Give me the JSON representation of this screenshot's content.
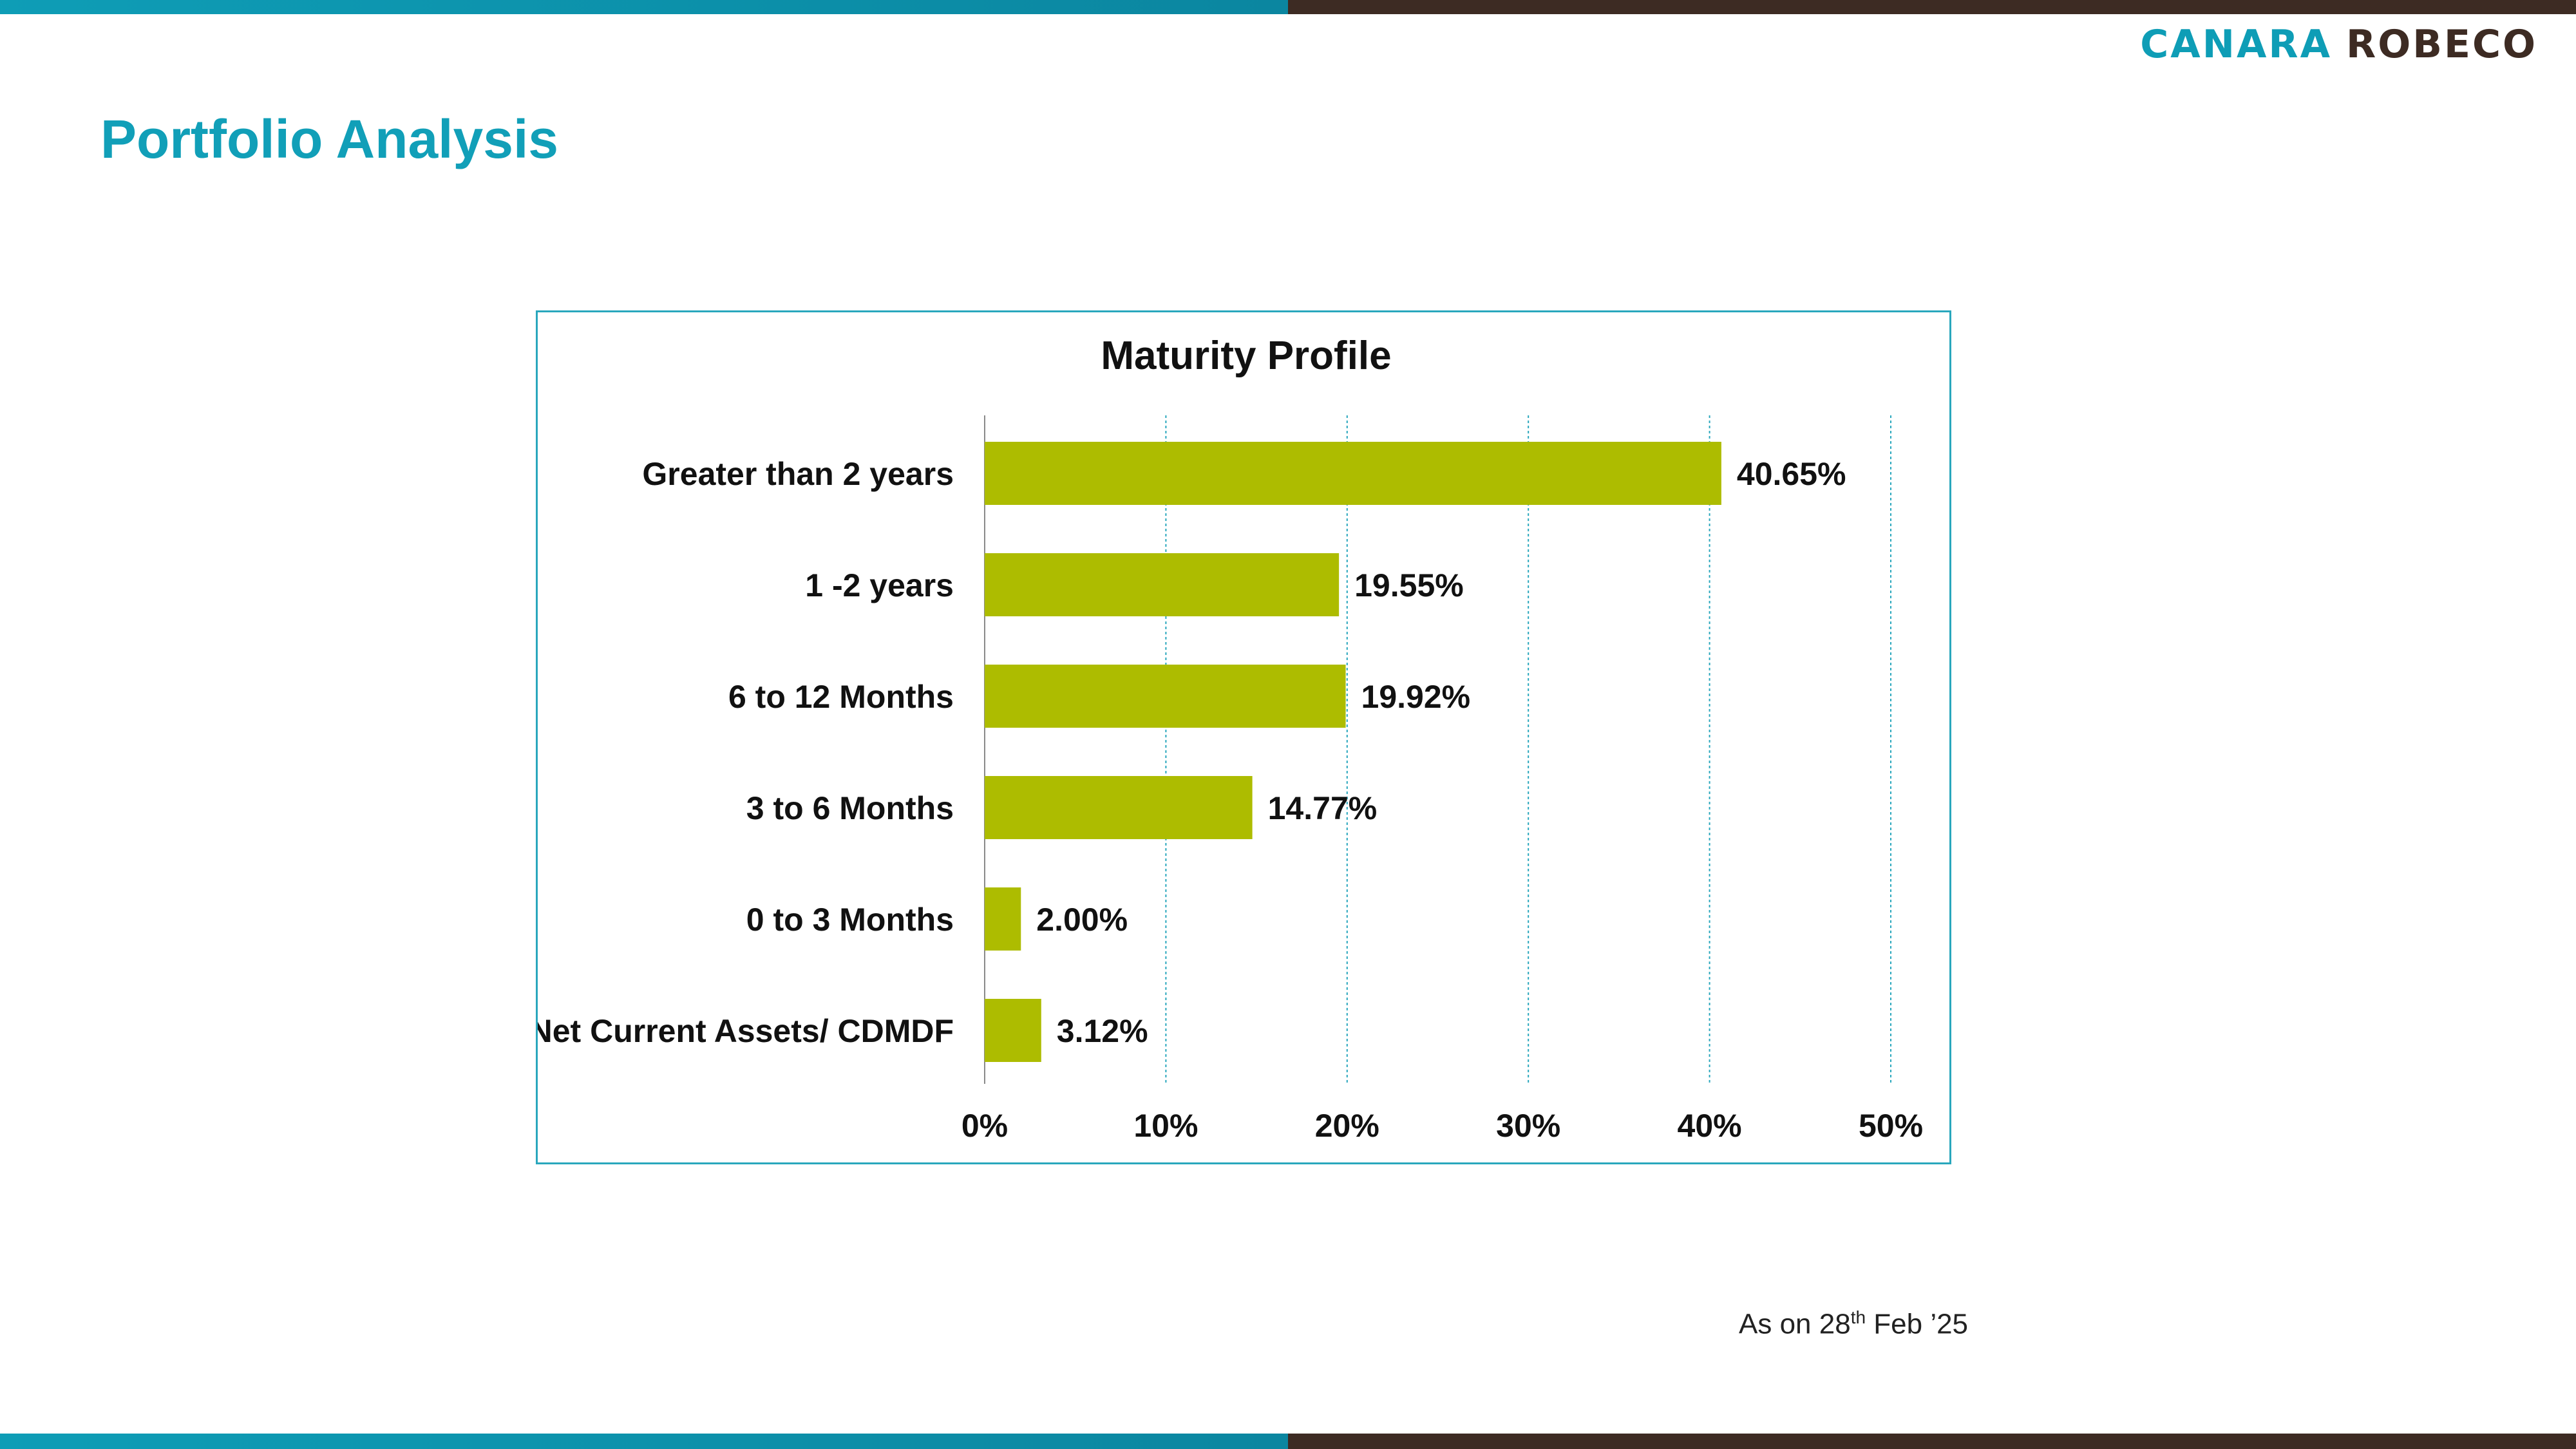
{
  "header": {
    "logo": {
      "part1": "CANARA",
      "part2": "ROBECO"
    },
    "page_title": "Portfolio Analysis"
  },
  "colors": {
    "teal": "#0e9db6",
    "brown": "#3d2b23",
    "bar": "#adbc00",
    "grid": "#2aa7bd"
  },
  "chart_data": {
    "type": "bar",
    "orientation": "horizontal",
    "title": "Maturity Profile",
    "categories": [
      "Greater than 2 years",
      "1 -2 years",
      "6 to 12 Months",
      "3 to 6 Months",
      "0 to 3 Months",
      "Net Current Assets/ CDMDF"
    ],
    "values": [
      40.65,
      19.55,
      19.92,
      14.77,
      2.0,
      3.12
    ],
    "data_labels": [
      "40.65%",
      "19.55%",
      "19.92%",
      "14.77%",
      "2.00%",
      "3.12%"
    ],
    "xlim": [
      0,
      50
    ],
    "xticks": [
      0,
      10,
      20,
      30,
      40,
      50
    ],
    "xtick_labels": [
      "0%",
      "10%",
      "20%",
      "30%",
      "40%",
      "50%"
    ],
    "xlabel": "",
    "ylabel": "",
    "grid": true,
    "legend": "none"
  },
  "footnote": {
    "prefix": "As on 28",
    "sup": "th",
    "suffix": " Feb  ’25"
  }
}
